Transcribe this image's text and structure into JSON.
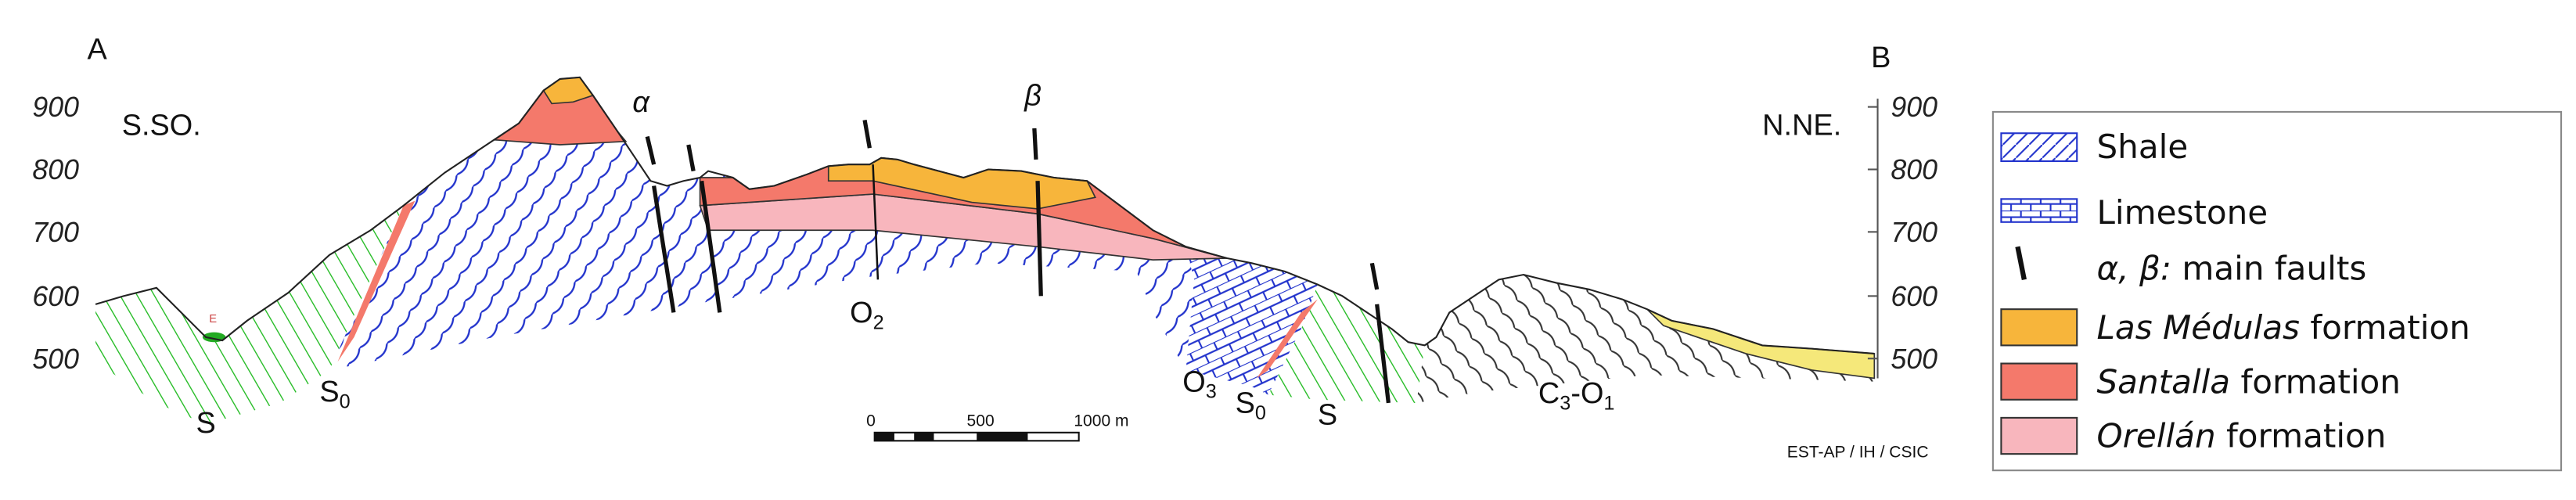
{
  "section": {
    "end_a": "A",
    "end_b": "B",
    "dir_left": "S.SO.",
    "dir_right": "N.NE.",
    "left_axis": [
      "900",
      "800",
      "700",
      "600",
      "500"
    ],
    "right_axis": [
      "900",
      "800",
      "700",
      "600",
      "500"
    ],
    "fault_alpha": "α",
    "fault_beta": "β",
    "units": [
      {
        "base": "S",
        "sub": ""
      },
      {
        "base": "S",
        "sub": "0"
      },
      {
        "base": "O",
        "sub": "2"
      },
      {
        "base": "O",
        "sub": "3"
      },
      {
        "base": "S",
        "sub": "0"
      },
      {
        "base": "S",
        "sub": ""
      },
      {
        "base": "C",
        "sub": "3",
        "rest": "-O",
        "sub2": "1"
      }
    ],
    "spot": "E",
    "scale": [
      "0",
      "500",
      "1000 m"
    ],
    "credit": "EST-AP / IH / CSIC"
  },
  "legend": {
    "shale": "Shale",
    "limestone": "Limestone",
    "faults_symbols": "α, β:",
    "faults_text": " main faults",
    "formations": [
      {
        "name": "Las Médulas",
        "suffix": " formation",
        "color": "#f7b53b"
      },
      {
        "name": "Santalla",
        "suffix": " formation",
        "color": "#f4796b"
      },
      {
        "name": "Orellán",
        "suffix": " formation",
        "color": "#f8b6bd"
      }
    ]
  }
}
